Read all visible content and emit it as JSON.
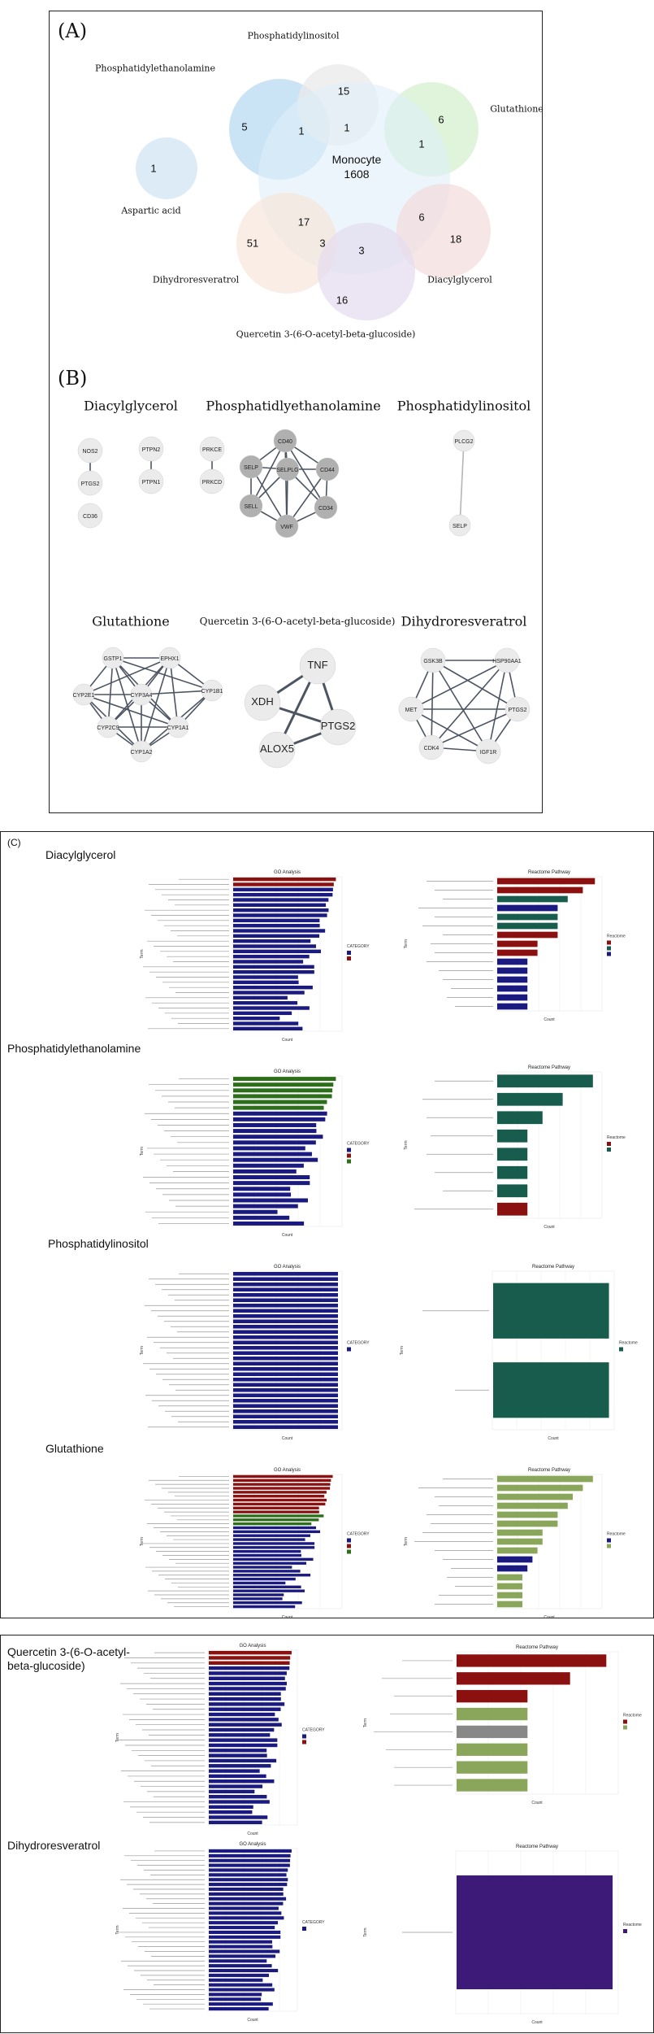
{
  "figure": {
    "panel_a": {
      "label": "(A)",
      "center_set": {
        "name": "Monocyte",
        "count": "1608"
      },
      "sets": [
        "Phosphatidylinositol",
        "Phosphatidylethanolamine",
        "Glutathione",
        "Aspartic acid",
        "Dihydroresveratrol",
        "Diacylglycerol",
        "Quercetin 3-(6-O-acetyl-beta-glucoside)"
      ],
      "counts": [
        "15",
        "5",
        "1",
        "1",
        "6",
        "1",
        "1",
        "17",
        "6",
        "51",
        "3",
        "3",
        "18",
        "16"
      ]
    },
    "panel_b": {
      "label": "(B)",
      "networks": [
        {
          "title": "Diacylglycerol",
          "nodes": [
            "NOS2",
            "PTGS2",
            "CD36",
            "PTPN2",
            "PTPN1",
            "PRKCE",
            "PRKCD"
          ]
        },
        {
          "title": "Phosphatidlyethanolamine",
          "nodes": [
            "CD40",
            "SELP",
            "SELPLG",
            "CD44",
            "SELL",
            "VWF",
            "CD34"
          ]
        },
        {
          "title": "Phosphatidylinositol",
          "nodes": [
            "PLCG2",
            "SELP"
          ]
        },
        {
          "title": "Glutathione",
          "nodes": [
            "GSTP1",
            "EPHX1",
            "CYP2E1",
            "CYP3A4",
            "CYP1B1",
            "CYP2C9",
            "CYP1A1",
            "CYP1A2"
          ]
        },
        {
          "title": "Quercetin 3-(6-O-acetyl-beta-glucoside)",
          "nodes": [
            "TNF",
            "XDH",
            "PTGS2",
            "ALOX5"
          ]
        },
        {
          "title": "Dihydroresveratrol",
          "nodes": [
            "GSK3B",
            "HSP90AA1",
            "MET",
            "PTGS2",
            "CDK4",
            "IGF1R"
          ]
        }
      ]
    },
    "panel_c": {
      "label": "(C)",
      "rows": [
        {
          "name": "Diacylglycerol",
          "go_title": "GO Analysis",
          "reactome_title": "Reactome Pathway"
        },
        {
          "name": "Phosphatidylethanolamine",
          "go_title": "GO Analysis",
          "reactome_title": "Reactome Pathway"
        },
        {
          "name": "Phosphatidylinositol",
          "go_title": "GO Analysis",
          "reactome_title": "Reactome Pathway"
        },
        {
          "name": "Glutathione",
          "go_title": "GO Analysis",
          "reactome_title": "Reactome Pathway"
        }
      ]
    },
    "panel_d": {
      "rows": [
        {
          "name": "Quercetin 3-(6-O-acetyl-beta-glucoside)",
          "go_title": "GO Analysis",
          "reactome_title": "Reactome Pathway"
        },
        {
          "name": "Dihydroresveratrol",
          "go_title": "GO Analysis",
          "reactome_title": "Reactome Pathway"
        }
      ]
    },
    "axis_text": {
      "count": "Count",
      "term": "Term",
      "category": "CATEGORY",
      "reactome": "Reactome"
    },
    "colors": {
      "bp": "#1a1a80",
      "cc": "#8b1010",
      "mf": "#2c6e1a",
      "reactome_red": "#8b1010",
      "reactome_green": "#175c4c",
      "reactome_blue": "#1a1a80",
      "reactome_olive": "#8aa65a",
      "reactome_purple": "#3e1a78",
      "reactome_grey": "#888888"
    }
  }
}
